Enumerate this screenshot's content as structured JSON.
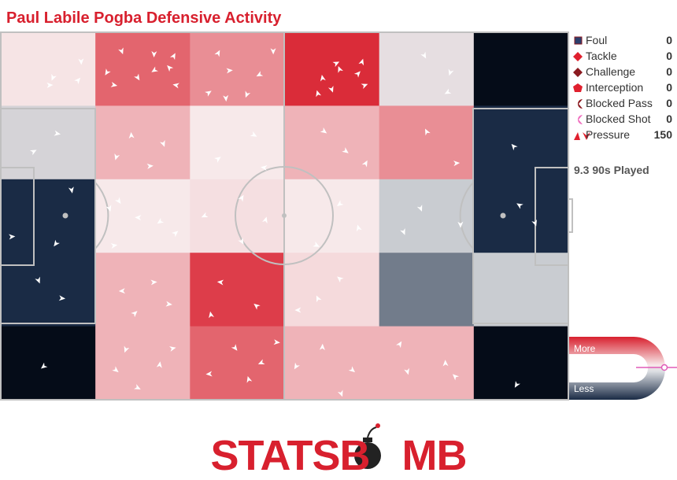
{
  "title": "Paul Labile Pogba Defensive Activity",
  "chart_data": {
    "type": "heatmap",
    "title": "Paul Labile Pogba Defensive Activity",
    "rows": 5,
    "cols": 6,
    "intensity": [
      [
        0.2,
        0.72,
        0.55,
        0.95,
        0.15,
        0.0
      ],
      [
        0.12,
        0.4,
        0.18,
        0.4,
        0.55,
        0.0
      ],
      [
        0.0,
        0.18,
        0.22,
        0.18,
        0.1,
        0.0
      ],
      [
        0.0,
        0.4,
        0.88,
        0.24,
        0.05,
        0.1
      ],
      [
        0.0,
        0.4,
        0.72,
        0.4,
        0.4,
        0.0
      ]
    ],
    "pressure_events": [
      [
        [
          0.85,
          0.4
        ],
        [
          0.55,
          0.62
        ],
        [
          0.82,
          0.65
        ],
        [
          0.52,
          0.72
        ]
      ],
      [
        [
          0.28,
          0.26
        ],
        [
          0.62,
          0.3
        ],
        [
          0.83,
          0.32
        ],
        [
          0.78,
          0.48
        ],
        [
          0.12,
          0.55
        ],
        [
          0.45,
          0.62
        ],
        [
          0.2,
          0.72
        ],
        [
          0.85,
          0.72
        ],
        [
          0.62,
          0.52
        ]
      ],
      [
        [
          0.3,
          0.28
        ],
        [
          0.88,
          0.26
        ],
        [
          0.42,
          0.52
        ],
        [
          0.73,
          0.58
        ],
        [
          0.2,
          0.82
        ],
        [
          0.6,
          0.85
        ],
        [
          0.38,
          0.9
        ]
      ],
      [
        [
          0.55,
          0.42
        ],
        [
          0.82,
          0.4
        ],
        [
          0.58,
          0.5
        ],
        [
          0.4,
          0.62
        ],
        [
          0.78,
          0.56
        ],
        [
          0.5,
          0.78
        ],
        [
          0.35,
          0.83
        ],
        [
          0.85,
          0.72
        ]
      ],
      [
        [
          0.48,
          0.32
        ],
        [
          0.75,
          0.55
        ],
        [
          0.72,
          0.82
        ]
      ],
      []
    ],
    "pressure_events_lower": [
      [
        [
          0.75,
          0.15
        ],
        [
          0.12,
          0.78
        ],
        [
          0.58,
          0.88
        ]
      ],
      [
        [
          0.25,
          0.3
        ],
        [
          0.45,
          0.52
        ],
        [
          0.68,
          0.58
        ],
        [
          0.85,
          0.73
        ],
        [
          0.2,
          0.9
        ],
        [
          0.15,
          0.4
        ]
      ],
      [
        [
          0.55,
          0.25
        ],
        [
          0.8,
          0.55
        ],
        [
          0.55,
          0.85
        ],
        [
          0.15,
          0.5
        ]
      ],
      [
        [
          0.58,
          0.34
        ],
        [
          0.78,
          0.66
        ],
        [
          0.34,
          0.9
        ]
      ],
      [
        [
          0.44,
          0.4
        ],
        [
          0.86,
          0.62
        ],
        [
          0.26,
          0.72
        ]
      ],
      [
        [
          0.48,
          0.35
        ],
        [
          0.65,
          0.6
        ]
      ]
    ],
    "pressure_events_mid": [
      [
        [
          0.6,
          0.38
        ],
        [
          0.35,
          0.62
        ]
      ],
      [
        [
          0.38,
          0.4
        ],
        [
          0.72,
          0.52
        ],
        [
          0.58,
          0.82
        ],
        [
          0.22,
          0.7
        ]
      ],
      [
        [
          0.68,
          0.4
        ],
        [
          0.3,
          0.72
        ],
        [
          0.78,
          0.84
        ]
      ],
      [
        [
          0.65,
          0.62
        ],
        [
          0.42,
          0.35
        ],
        [
          0.86,
          0.78
        ]
      ],
      [
        [
          0.5,
          0.35
        ],
        [
          0.82,
          0.78
        ]
      ],
      [
        [
          0.42,
          0.55
        ]
      ]
    ],
    "pressure_events_bottom": [
      [
        [
          0.45,
          0.55
        ]
      ],
      [
        [
          0.32,
          0.32
        ],
        [
          0.68,
          0.52
        ],
        [
          0.45,
          0.84
        ],
        [
          0.22,
          0.6
        ],
        [
          0.82,
          0.3
        ]
      ],
      [
        [
          0.48,
          0.3
        ],
        [
          0.75,
          0.5
        ],
        [
          0.2,
          0.65
        ],
        [
          0.92,
          0.22
        ],
        [
          0.62,
          0.72
        ]
      ],
      [
        [
          0.4,
          0.28
        ],
        [
          0.72,
          0.6
        ],
        [
          0.12,
          0.55
        ],
        [
          0.6,
          0.92
        ]
      ],
      [
        [
          0.22,
          0.24
        ],
        [
          0.7,
          0.5
        ],
        [
          0.3,
          0.62
        ],
        [
          0.8,
          0.68
        ]
      ],
      [
        [
          0.45,
          0.8
        ]
      ]
    ]
  },
  "legend": [
    {
      "label": "Foul",
      "count": "0",
      "icon": "foul-icon",
      "color": "#2c3e6b"
    },
    {
      "label": "Tackle",
      "count": "0",
      "icon": "tackle-icon",
      "color": "#e0202e"
    },
    {
      "label": "Challenge",
      "count": "0",
      "icon": "challenge-icon",
      "color": "#8b1a20"
    },
    {
      "label": "Interception",
      "count": "0",
      "icon": "interception-icon",
      "color": "#e0202e"
    },
    {
      "label": "Blocked Pass",
      "count": "0",
      "icon": "blocked-pass-icon",
      "color": "#8b1a20"
    },
    {
      "label": "Blocked Shot",
      "count": "0",
      "icon": "blocked-shot-icon",
      "color": "#f06fbf"
    },
    {
      "label": "Pressure",
      "count": "150",
      "icon": "pressure-icon",
      "color": "#e0202e"
    }
  ],
  "played": "9.3 90s Played",
  "scale": {
    "more": "More",
    "less": "Less"
  },
  "brand": "STATSBOMB",
  "colors": {
    "hot": "#d8202e",
    "cold": "#1a2b45",
    "neutral": "#c9ccd1",
    "pitch_line": "#c0c0c0"
  }
}
